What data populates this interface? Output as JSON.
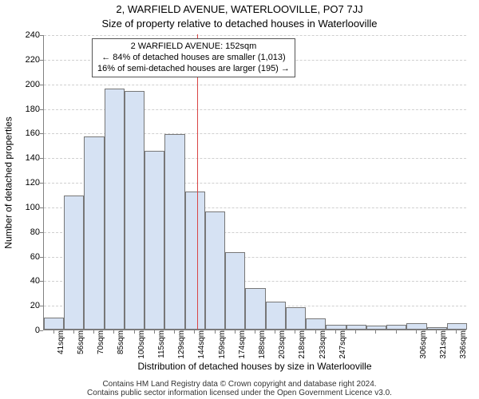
{
  "chart": {
    "type": "histogram",
    "title_line_1": "2, WARFIELD AVENUE, WATERLOOVILLE, PO7 7JJ",
    "title_line_2": "Size of property relative to detached houses in Waterlooville",
    "y_axis_label": "Number of detached properties",
    "x_axis_label": "Distribution of detached houses by size in Waterlooville",
    "background_color": "#ffffff",
    "grid_color": "#d0d0d0",
    "axis_color": "#808080",
    "bar_fill": "#d6e2f3",
    "bar_border": "#777777",
    "reference_line_color": "#d94545",
    "title_fontsize": 13,
    "label_fontsize": 12,
    "tick_fontsize": 11,
    "ylim": [
      0,
      240
    ],
    "ytick_step": 20,
    "y_ticks": [
      0,
      20,
      40,
      60,
      80,
      100,
      120,
      140,
      160,
      180,
      200,
      220,
      240
    ],
    "x_tick_labels": [
      "41sqm",
      "56sqm",
      "70sqm",
      "85sqm",
      "100sqm",
      "115sqm",
      "129sqm",
      "144sqm",
      "159sqm",
      "174sqm",
      "188sqm",
      "203sqm",
      "218sqm",
      "233sqm",
      "247sqm",
      "",
      "",
      "",
      "306sqm",
      "321sqm",
      "336sqm"
    ],
    "values": [
      10,
      109,
      157,
      196,
      194,
      145,
      159,
      112,
      96,
      63,
      34,
      23,
      18,
      9,
      4,
      4,
      3,
      4,
      5,
      2,
      5
    ],
    "reference_x_index": 7.6,
    "bar_width_ratio": 1.0,
    "callout": {
      "line1": "2 WARFIELD AVENUE: 152sqm",
      "line2": "← 84% of detached houses are smaller (1,013)",
      "line3": "16% of semi-detached houses are larger (195) →",
      "border_color": "#555555",
      "background": "#ffffff",
      "fontsize": 11
    }
  },
  "footer": {
    "line1": "Contains HM Land Registry data © Crown copyright and database right 2024.",
    "line2": "Contains public sector information licensed under the Open Government Licence v3.0."
  }
}
